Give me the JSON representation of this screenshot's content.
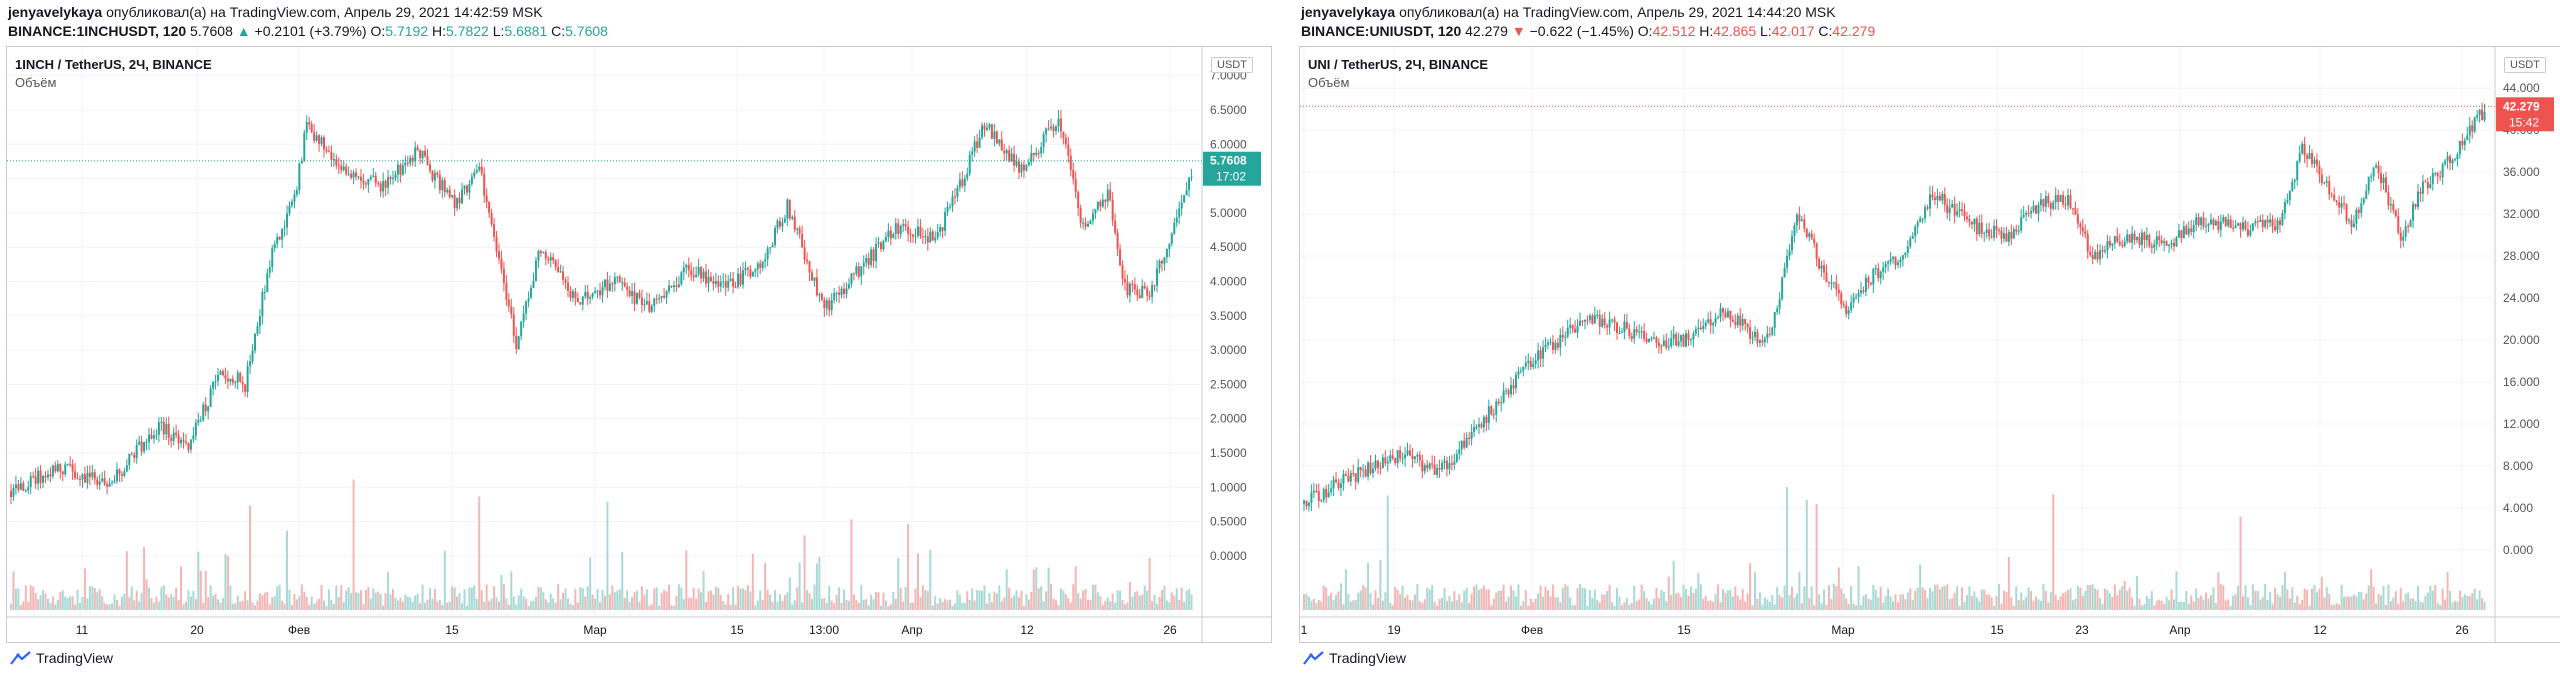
{
  "panels": [
    {
      "header": {
        "author": "jenyavelykaya",
        "published": "опубликовал(а) на TradingView.com, Апрель 29, 2021 14:42:59 MSK",
        "symbol": "BINANCE:1INCHUSDT, 120",
        "last": "5.7608",
        "arrow": "▲",
        "change": "+0.2101 (+3.79%)",
        "o_label": "O:",
        "o": "5.7192",
        "h_label": "H:",
        "h": "5.7822",
        "l_label": "L:",
        "l": "5.6881",
        "c_label": "C:",
        "c": "5.7608",
        "direction": "up"
      },
      "title": "1INCH / TetherUS, 2Ч, BINANCE",
      "volume_label": "Объём",
      "currency": "USDT",
      "price_tag": "5.7608",
      "time_tag": "17:02",
      "tag_color": "#26a69a",
      "footer": "TradingView"
    },
    {
      "header": {
        "author": "jenyavelykaya",
        "published": "опубликовал(а) на TradingView.com, Апрель 29, 2021 14:44:20 MSK",
        "symbol": "BINANCE:UNIUSDT, 120",
        "last": "42.279",
        "arrow": "▼",
        "change": "−0.622 (−1.45%)",
        "o_label": "O:",
        "o": "42.512",
        "h_label": "H:",
        "h": "42.865",
        "l_label": "L:",
        "l": "42.017",
        "c_label": "C:",
        "c": "42.279",
        "direction": "down"
      },
      "title": "UNI / TetherUS, 2Ч, BINANCE",
      "volume_label": "Объём",
      "currency": "USDT",
      "price_tag": "42.279",
      "time_tag": "15:42",
      "tag_color": "#ef5350",
      "footer": "TradingView"
    }
  ],
  "chart_data": [
    {
      "type": "candlestick",
      "title": "1INCH / TetherUS, 2Ч, BINANCE",
      "ylim": [
        -0.6,
        7.2
      ],
      "y_ticks": [
        "7.0000",
        "6.5000",
        "6.0000",
        "5.5000",
        "5.0000",
        "4.5000",
        "4.0000",
        "3.5000",
        "3.0000",
        "2.5000",
        "2.0000",
        "1.5000",
        "1.0000",
        "0.5000",
        "0.0000"
      ],
      "x_ticks": [
        "11",
        "20",
        "Фев",
        "15",
        "Mар",
        "15",
        "13:00",
        "Апр",
        "12",
        "26"
      ],
      "last_price": 5.7608,
      "close_path": [
        [
          0,
          0.95
        ],
        [
          20,
          1.3
        ],
        [
          40,
          1.05
        ],
        [
          60,
          1.9
        ],
        [
          72,
          1.6
        ],
        [
          85,
          2.7
        ],
        [
          95,
          2.5
        ],
        [
          105,
          4.3
        ],
        [
          115,
          5.2
        ],
        [
          120,
          6.3
        ],
        [
          135,
          5.6
        ],
        [
          150,
          5.4
        ],
        [
          165,
          5.9
        ],
        [
          180,
          5.1
        ],
        [
          190,
          5.7
        ],
        [
          205,
          3.1
        ],
        [
          215,
          4.5
        ],
        [
          230,
          3.7
        ],
        [
          245,
          4.0
        ],
        [
          260,
          3.6
        ],
        [
          275,
          4.2
        ],
        [
          290,
          3.9
        ],
        [
          305,
          4.3
        ],
        [
          315,
          5.1
        ],
        [
          330,
          3.6
        ],
        [
          345,
          4.2
        ],
        [
          360,
          4.8
        ],
        [
          375,
          4.6
        ],
        [
          385,
          5.4
        ],
        [
          395,
          6.3
        ],
        [
          410,
          5.6
        ],
        [
          425,
          6.4
        ],
        [
          435,
          4.8
        ],
        [
          445,
          5.3
        ],
        [
          452,
          3.9
        ],
        [
          462,
          3.8
        ],
        [
          472,
          4.8
        ],
        [
          480,
          5.76
        ]
      ]
    },
    {
      "type": "candlestick",
      "title": "UNI / TetherUS, 2Ч, BINANCE",
      "ylim": [
        -4.5,
        46.5
      ],
      "y_ticks": [
        "44.000",
        "40.000",
        "36.000",
        "32.000",
        "28.000",
        "24.000",
        "20.000",
        "16.000",
        "12.000",
        "8.000",
        "4.000",
        "0.000"
      ],
      "x_ticks": [
        "1",
        "19",
        "Фев",
        "15",
        "Mар",
        "15",
        "23",
        "Апр",
        "12",
        "26"
      ],
      "last_price": 42.279,
      "close_path": [
        [
          0,
          4.4
        ],
        [
          15,
          6.5
        ],
        [
          40,
          9.0
        ],
        [
          55,
          7.5
        ],
        [
          70,
          11.5
        ],
        [
          90,
          17.5
        ],
        [
          100,
          19.5
        ],
        [
          115,
          22.0
        ],
        [
          130,
          21.0
        ],
        [
          145,
          19.5
        ],
        [
          160,
          20.5
        ],
        [
          170,
          23.0
        ],
        [
          180,
          21.0
        ],
        [
          185,
          19.5
        ],
        [
          190,
          21.0
        ],
        [
          200,
          32.0
        ],
        [
          210,
          27.0
        ],
        [
          220,
          23.0
        ],
        [
          230,
          26.0
        ],
        [
          245,
          28.5
        ],
        [
          255,
          34.0
        ],
        [
          270,
          31.0
        ],
        [
          285,
          30.0
        ],
        [
          300,
          33.0
        ],
        [
          310,
          33.5
        ],
        [
          320,
          28.0
        ],
        [
          335,
          30.0
        ],
        [
          350,
          29.0
        ],
        [
          365,
          31.5
        ],
        [
          380,
          30.5
        ],
        [
          395,
          31.0
        ],
        [
          405,
          38.0
        ],
        [
          415,
          35.0
        ],
        [
          425,
          31.0
        ],
        [
          435,
          37.0
        ],
        [
          445,
          30.0
        ],
        [
          455,
          35.0
        ],
        [
          465,
          37.0
        ],
        [
          472,
          40.0
        ],
        [
          480,
          42.28
        ]
      ]
    }
  ]
}
